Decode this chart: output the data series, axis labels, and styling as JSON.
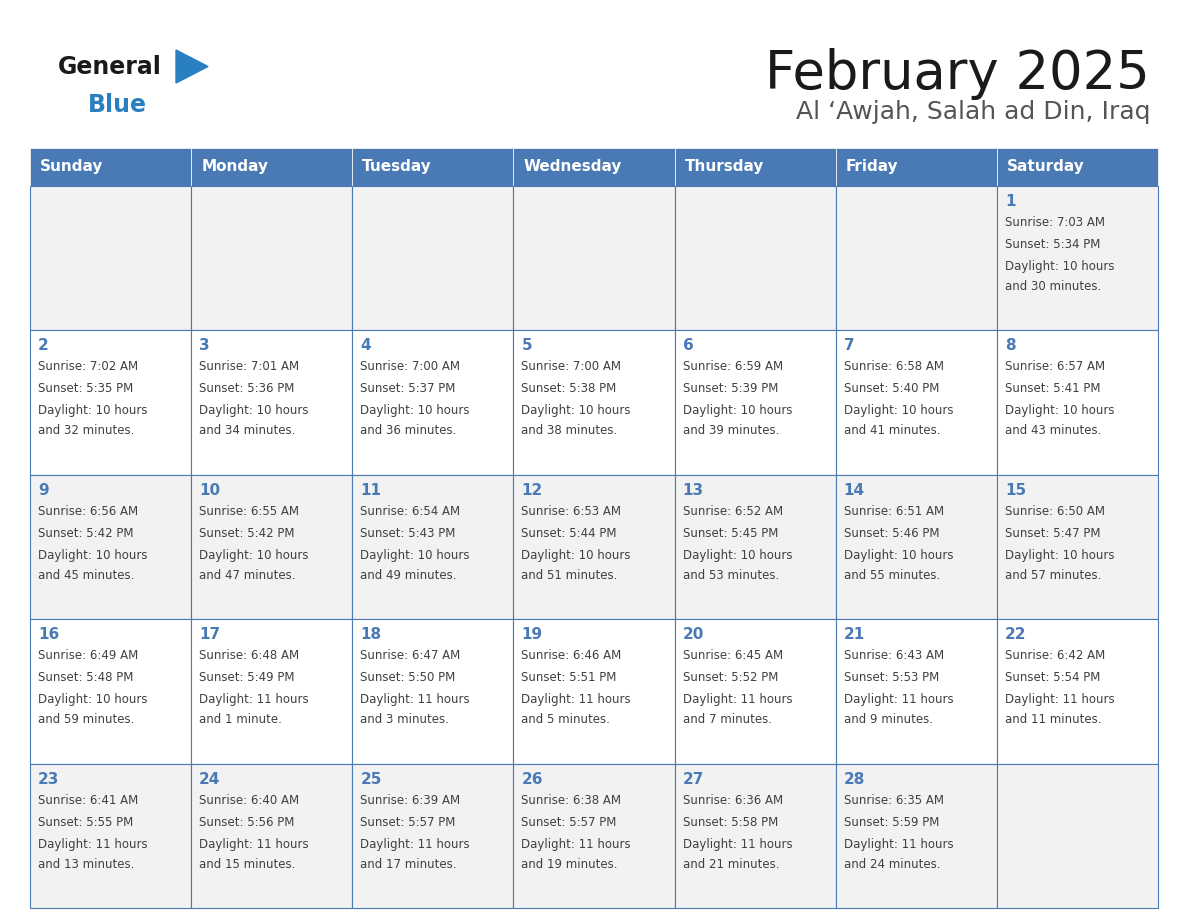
{
  "title": "February 2025",
  "subtitle": "Al ‘Awjah, Salah ad Din, Iraq",
  "days_of_week": [
    "Sunday",
    "Monday",
    "Tuesday",
    "Wednesday",
    "Thursday",
    "Friday",
    "Saturday"
  ],
  "header_bg": "#4a7ab5",
  "header_text": "#FFFFFF",
  "cell_bg_light": "#f2f2f2",
  "cell_bg_white": "#FFFFFF",
  "border_color": "#4a7ab5",
  "day_number_color": "#4a7ab5",
  "text_color": "#404040",
  "logo_general_color": "#1a1a1a",
  "logo_blue_color": "#2a7fc1",
  "logo_triangle_color": "#2a7fc1",
  "title_color": "#1a1a1a",
  "subtitle_color": "#555555",
  "calendar_data": [
    [
      null,
      null,
      null,
      null,
      null,
      null,
      {
        "day": 1,
        "sunrise": "7:03 AM",
        "sunset": "5:34 PM",
        "daylight": "10 hours and 30 minutes."
      }
    ],
    [
      {
        "day": 2,
        "sunrise": "7:02 AM",
        "sunset": "5:35 PM",
        "daylight": "10 hours and 32 minutes."
      },
      {
        "day": 3,
        "sunrise": "7:01 AM",
        "sunset": "5:36 PM",
        "daylight": "10 hours and 34 minutes."
      },
      {
        "day": 4,
        "sunrise": "7:00 AM",
        "sunset": "5:37 PM",
        "daylight": "10 hours and 36 minutes."
      },
      {
        "day": 5,
        "sunrise": "7:00 AM",
        "sunset": "5:38 PM",
        "daylight": "10 hours and 38 minutes."
      },
      {
        "day": 6,
        "sunrise": "6:59 AM",
        "sunset": "5:39 PM",
        "daylight": "10 hours and 39 minutes."
      },
      {
        "day": 7,
        "sunrise": "6:58 AM",
        "sunset": "5:40 PM",
        "daylight": "10 hours and 41 minutes."
      },
      {
        "day": 8,
        "sunrise": "6:57 AM",
        "sunset": "5:41 PM",
        "daylight": "10 hours and 43 minutes."
      }
    ],
    [
      {
        "day": 9,
        "sunrise": "6:56 AM",
        "sunset": "5:42 PM",
        "daylight": "10 hours and 45 minutes."
      },
      {
        "day": 10,
        "sunrise": "6:55 AM",
        "sunset": "5:42 PM",
        "daylight": "10 hours and 47 minutes."
      },
      {
        "day": 11,
        "sunrise": "6:54 AM",
        "sunset": "5:43 PM",
        "daylight": "10 hours and 49 minutes."
      },
      {
        "day": 12,
        "sunrise": "6:53 AM",
        "sunset": "5:44 PM",
        "daylight": "10 hours and 51 minutes."
      },
      {
        "day": 13,
        "sunrise": "6:52 AM",
        "sunset": "5:45 PM",
        "daylight": "10 hours and 53 minutes."
      },
      {
        "day": 14,
        "sunrise": "6:51 AM",
        "sunset": "5:46 PM",
        "daylight": "10 hours and 55 minutes."
      },
      {
        "day": 15,
        "sunrise": "6:50 AM",
        "sunset": "5:47 PM",
        "daylight": "10 hours and 57 minutes."
      }
    ],
    [
      {
        "day": 16,
        "sunrise": "6:49 AM",
        "sunset": "5:48 PM",
        "daylight": "10 hours and 59 minutes."
      },
      {
        "day": 17,
        "sunrise": "6:48 AM",
        "sunset": "5:49 PM",
        "daylight": "11 hours and 1 minute."
      },
      {
        "day": 18,
        "sunrise": "6:47 AM",
        "sunset": "5:50 PM",
        "daylight": "11 hours and 3 minutes."
      },
      {
        "day": 19,
        "sunrise": "6:46 AM",
        "sunset": "5:51 PM",
        "daylight": "11 hours and 5 minutes."
      },
      {
        "day": 20,
        "sunrise": "6:45 AM",
        "sunset": "5:52 PM",
        "daylight": "11 hours and 7 minutes."
      },
      {
        "day": 21,
        "sunrise": "6:43 AM",
        "sunset": "5:53 PM",
        "daylight": "11 hours and 9 minutes."
      },
      {
        "day": 22,
        "sunrise": "6:42 AM",
        "sunset": "5:54 PM",
        "daylight": "11 hours and 11 minutes."
      }
    ],
    [
      {
        "day": 23,
        "sunrise": "6:41 AM",
        "sunset": "5:55 PM",
        "daylight": "11 hours and 13 minutes."
      },
      {
        "day": 24,
        "sunrise": "6:40 AM",
        "sunset": "5:56 PM",
        "daylight": "11 hours and 15 minutes."
      },
      {
        "day": 25,
        "sunrise": "6:39 AM",
        "sunset": "5:57 PM",
        "daylight": "11 hours and 17 minutes."
      },
      {
        "day": 26,
        "sunrise": "6:38 AM",
        "sunset": "5:57 PM",
        "daylight": "11 hours and 19 minutes."
      },
      {
        "day": 27,
        "sunrise": "6:36 AM",
        "sunset": "5:58 PM",
        "daylight": "11 hours and 21 minutes."
      },
      {
        "day": 28,
        "sunrise": "6:35 AM",
        "sunset": "5:59 PM",
        "daylight": "11 hours and 24 minutes."
      },
      null
    ]
  ]
}
